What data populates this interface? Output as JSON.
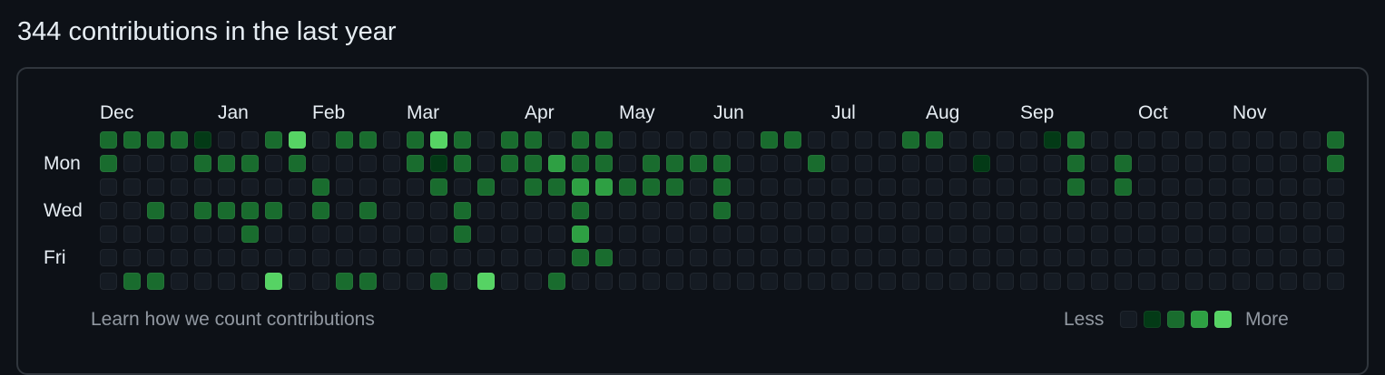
{
  "header": {
    "title": "344 contributions in the last year"
  },
  "calendar": {
    "months": [
      "Dec",
      "Jan",
      "Feb",
      "Mar",
      "Apr",
      "May",
      "Jun",
      "Jul",
      "Aug",
      "Sep",
      "Oct",
      "Nov"
    ],
    "month_start_weeks": [
      0,
      5,
      9,
      13,
      18,
      22,
      26,
      31,
      35,
      39,
      44,
      48
    ],
    "day_labels": [
      "Mon",
      "Wed",
      "Fri"
    ],
    "day_label_rows": [
      1,
      3,
      5
    ],
    "weeks": 53,
    "levels": [
      "22221002402202420220220000002200002200001200000000002",
      "20002220200002120223220222200020000001000202000000002",
      "00000000020000202022332220200000000000000202000000000",
      "00202222020200020000200000200000000000000000000000000",
      "00000020000000020000300000000000000000000000000000000",
      "00000000000000000000220000000000000000000000000000000",
      "02200004002200204002000000000000000000000000000000000"
    ],
    "colors": [
      "#151b23",
      "#033a16",
      "#196c2e",
      "#2ea043",
      "#56d364"
    ]
  },
  "footer": {
    "learn_link": "Learn how we count contributions",
    "legend_less": "Less",
    "legend_more": "More"
  }
}
